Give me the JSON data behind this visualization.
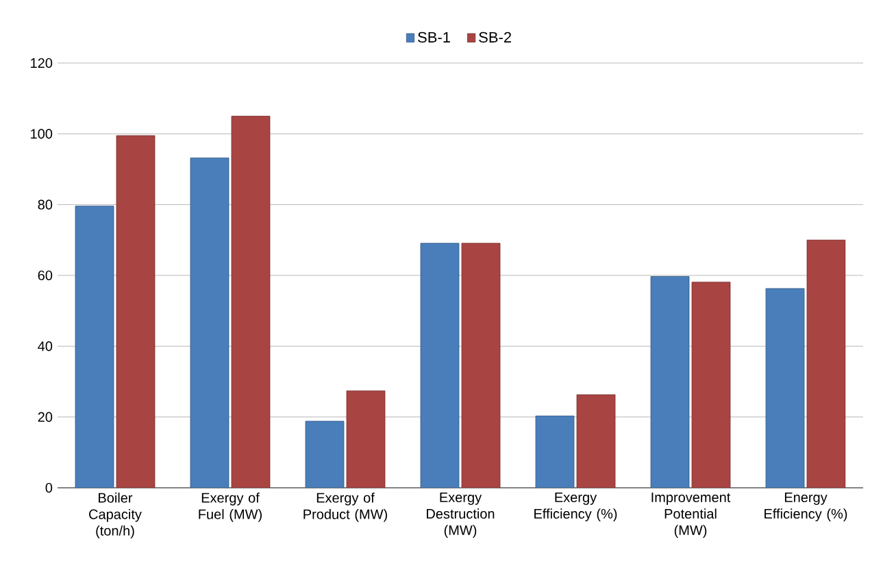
{
  "chart_data": {
    "type": "bar",
    "categories": [
      "Boiler Capacity (ton/h)",
      "Exergy of Fuel (MW)",
      "Exergy of Product (MW)",
      "Exergy Destruction (MW)",
      "Exergy Efficiency (%)",
      "Improvement Potential (MW)",
      "Energy Efficiency (%)"
    ],
    "series": [
      {
        "name": "SB-1",
        "color": "#4a7ebb",
        "values": [
          79.6,
          93.2,
          18.8,
          69.1,
          20.3,
          59.7,
          56.3
        ]
      },
      {
        "name": "SB-2",
        "color": "#a84442",
        "values": [
          99.5,
          105,
          27.4,
          69.1,
          26.3,
          58.1,
          70.0
        ]
      }
    ],
    "ylim": [
      0,
      120
    ],
    "yticks": [
      0,
      20,
      40,
      60,
      80,
      100,
      120
    ],
    "grid": "y",
    "legend": "top"
  }
}
